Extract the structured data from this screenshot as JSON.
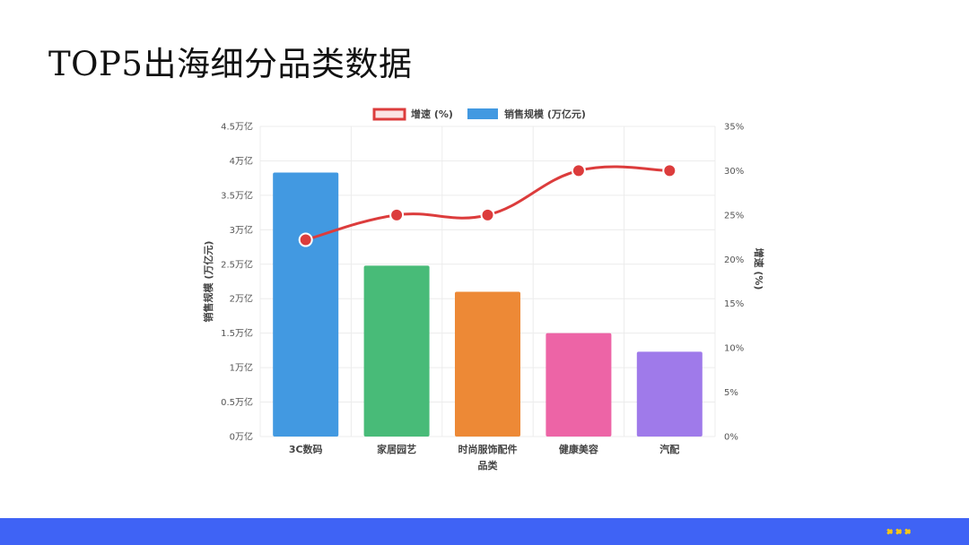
{
  "slide": {
    "title": "TOP5出海细分品类数据"
  },
  "theme": {
    "bottom_bar_color": "#3f63f5",
    "chevron_color": "#f5c518",
    "line_color": "#dc3c3c",
    "grid_color": "#ececec",
    "axis_text_color": "#555555"
  },
  "footer": {
    "icon": "triple-chevron-right-icon"
  },
  "chart_data": {
    "type": "bar",
    "categories": [
      "3C数码",
      "家居园艺",
      "时尚服饰配件",
      "健康美容",
      "汽配"
    ],
    "xlabel": "品类",
    "ylabel": "销售规模 (万亿元)",
    "y2label": "增速 (%)",
    "ylim": [
      0,
      4.5
    ],
    "y2lim": [
      0,
      35
    ],
    "yticks": [
      "0万亿",
      "0.5万亿",
      "1万亿",
      "1.5万亿",
      "2万亿",
      "2.5万亿",
      "3万亿",
      "3.5万亿",
      "4万亿",
      "4.5万亿"
    ],
    "y2ticks": [
      "0%",
      "5%",
      "10%",
      "15%",
      "20%",
      "25%",
      "30%",
      "35%"
    ],
    "legend_position": "top",
    "grid": true,
    "series": [
      {
        "name": "增速 (%)",
        "type": "line",
        "axis": "right",
        "color": "#dc3c3c",
        "values": [
          22.2,
          25,
          25,
          30,
          30
        ]
      },
      {
        "name": "销售规模 (万亿元)",
        "type": "bar",
        "axis": "left",
        "color": "#4299e1",
        "values": [
          3.83,
          2.48,
          2.1,
          1.5,
          1.23
        ],
        "bar_colors": [
          "#4299e1",
          "#48bb78",
          "#ed8936",
          "#ed64a6",
          "#9f7aea"
        ]
      }
    ]
  }
}
